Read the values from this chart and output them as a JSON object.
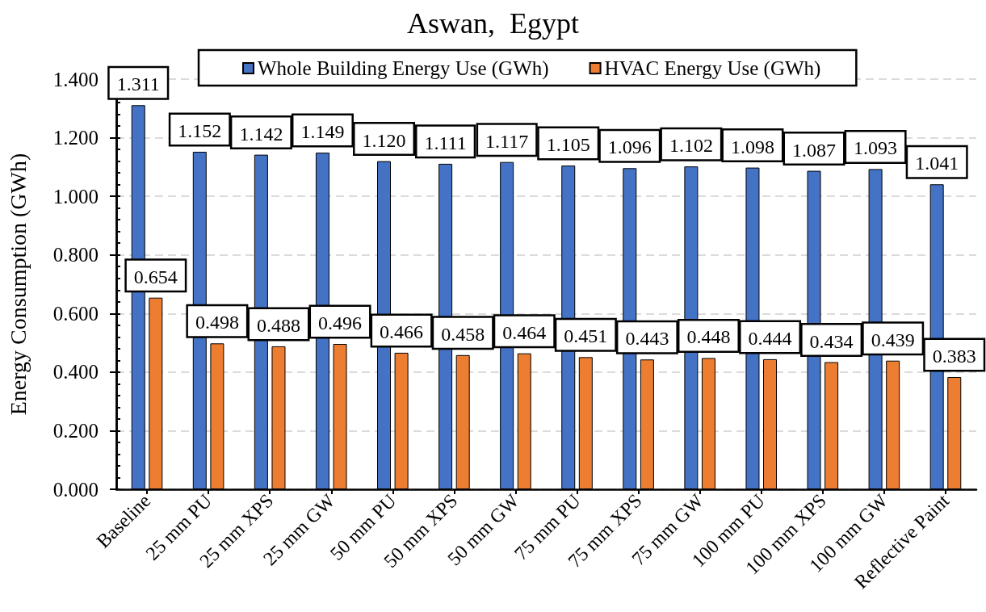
{
  "chart_data": {
    "type": "bar",
    "title": "Aswan,  Egypt",
    "ylabel": "Energy Consumption (GWh)",
    "categories": [
      "Baseline",
      "25 mm PU",
      "25 mm XPS",
      "25 mm GW",
      "50 mm PU",
      "50 mm XPS",
      "50 mm GW",
      "75 mm PU",
      "75 mm XPS",
      "75 mm GW",
      "100 mm PU",
      "100 mm XPS",
      "100 mm GW",
      "Reflective Paint"
    ],
    "series": [
      {
        "name": "Whole Building Energy Use (GWh)",
        "color": "#4472c4",
        "values": [
          1.311,
          1.152,
          1.142,
          1.149,
          1.12,
          1.111,
          1.117,
          1.105,
          1.096,
          1.102,
          1.098,
          1.087,
          1.093,
          1.041
        ],
        "value_labels": [
          "1.311",
          "1.152",
          "1.142",
          "1.149",
          "1.120",
          "1.111",
          "1.117",
          "1.105",
          "1.096",
          "1.102",
          "1.098",
          "1.087",
          "1.093",
          "1.041"
        ]
      },
      {
        "name": "HVAC Energy Use (GWh)",
        "color": "#ed7d31",
        "values": [
          0.654,
          0.498,
          0.488,
          0.496,
          0.466,
          0.458,
          0.464,
          0.451,
          0.443,
          0.448,
          0.444,
          0.434,
          0.439,
          0.383
        ],
        "value_labels": [
          "0.654",
          "0.498",
          "0.488",
          "0.496",
          "0.466",
          "0.458",
          "0.464",
          "0.451",
          "0.443",
          "0.448",
          "0.444",
          "0.434",
          "0.439",
          "0.383"
        ]
      }
    ],
    "ylim": [
      0,
      1.4
    ],
    "yticks": [
      {
        "value": 0,
        "label": "0.000"
      },
      {
        "value": 0.04,
        "label": null
      },
      {
        "value": 0.08,
        "label": null
      },
      {
        "value": 0.12,
        "label": null
      },
      {
        "value": 0.16,
        "label": null
      },
      {
        "value": 0.2,
        "label": "0.200"
      },
      {
        "value": 0.24,
        "label": null
      },
      {
        "value": 0.28,
        "label": null
      },
      {
        "value": 0.32,
        "label": null
      },
      {
        "value": 0.36,
        "label": null
      },
      {
        "value": 0.4,
        "label": "0.400"
      },
      {
        "value": 0.44,
        "label": null
      },
      {
        "value": 0.48,
        "label": null
      },
      {
        "value": 0.52,
        "label": null
      },
      {
        "value": 0.56,
        "label": null
      },
      {
        "value": 0.6,
        "label": "0.600"
      },
      {
        "value": 0.64,
        "label": null
      },
      {
        "value": 0.68,
        "label": null
      },
      {
        "value": 0.72,
        "label": null
      },
      {
        "value": 0.76,
        "label": null
      },
      {
        "value": 0.8,
        "label": "0.800"
      },
      {
        "value": 0.84,
        "label": null
      },
      {
        "value": 0.88,
        "label": null
      },
      {
        "value": 0.92,
        "label": null
      },
      {
        "value": 0.96,
        "label": null
      },
      {
        "value": 1,
        "label": "1.000"
      },
      {
        "value": 1.04,
        "label": null
      },
      {
        "value": 1.08,
        "label": null
      },
      {
        "value": 1.12,
        "label": null
      },
      {
        "value": 1.16,
        "label": null
      },
      {
        "value": 1.2,
        "label": "1.200"
      },
      {
        "value": 1.24,
        "label": null
      },
      {
        "value": 1.28,
        "label": null
      },
      {
        "value": 1.32,
        "label": null
      },
      {
        "value": 1.36,
        "label": null
      },
      {
        "value": 1.4,
        "label": "1.400"
      }
    ],
    "grid": "y",
    "legend": "top"
  }
}
